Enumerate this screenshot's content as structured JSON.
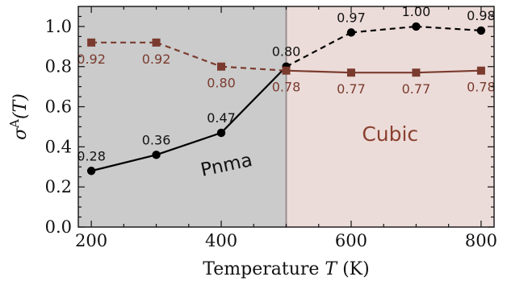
{
  "chart_data": {
    "type": "line",
    "xlabel_prefix": "Temperature ",
    "xlabel_var": "T",
    "xlabel_unit": " (K)",
    "ylabel_sigma": "σ",
    "ylabel_sup": "A",
    "ylabel_arg": "(T)",
    "x": [
      200,
      300,
      400,
      500,
      600,
      700,
      800
    ],
    "xlim": [
      180,
      820
    ],
    "ylim": [
      0.0,
      1.1
    ],
    "xticks": [
      200,
      400,
      600,
      800
    ],
    "yticks": [
      0.0,
      0.2,
      0.4,
      0.6,
      0.8,
      1.0
    ],
    "xtick_labels": [
      "200",
      "400",
      "600",
      "800"
    ],
    "ytick_labels": [
      "0.0",
      "0.2",
      "0.4",
      "0.6",
      "0.8",
      "1.0"
    ],
    "boundary_x": 500,
    "regions": [
      {
        "label": "Pnma",
        "from": 180,
        "to": 500,
        "color": "#cbcbcb"
      },
      {
        "label": "Cubic",
        "from": 500,
        "to": 820,
        "color": "#ecdcd9"
      }
    ],
    "series": [
      {
        "color": "#000000",
        "marker": "circle",
        "values": [
          0.28,
          0.36,
          0.47,
          0.8,
          0.97,
          1.0,
          0.98
        ],
        "labels": [
          "0.28",
          "0.36",
          "0.47",
          "0.80",
          "0.97",
          "1.00",
          "0.98"
        ],
        "style_by_segment": [
          "solid",
          "solid",
          "solid",
          "dashed",
          "dashed",
          "dashed"
        ]
      },
      {
        "color": "#7a3b2e",
        "marker": "square",
        "values": [
          0.92,
          0.92,
          0.8,
          0.78,
          0.77,
          0.77,
          0.78
        ],
        "labels": [
          "0.92",
          "0.92",
          "0.80",
          "0.78",
          "0.77",
          "0.77",
          "0.78"
        ],
        "style_by_segment": [
          "dashed",
          "dashed",
          "dashed",
          "solid",
          "solid",
          "solid"
        ]
      }
    ]
  }
}
